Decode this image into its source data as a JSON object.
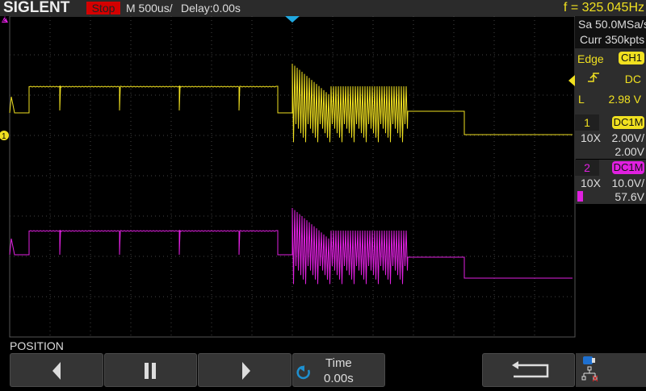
{
  "header": {
    "brand": "SIGLENT",
    "run_state": "Stop",
    "timebase": "M 500us/",
    "delay": "Delay:0.00s",
    "frequency": "f = 325.045Hz"
  },
  "acquisition": {
    "sample_rate": "Sa 50.0MSa/s",
    "memory": "Curr 350kpts"
  },
  "trigger": {
    "type": "Edge",
    "source": "CH1",
    "slope_icon": "rising-edge-icon",
    "coupling": "DC",
    "level_label": "L",
    "level": "2.98 V"
  },
  "channels": [
    {
      "number": "1",
      "coupling": "DC1M",
      "probe": "10X",
      "scale": "2.00V/",
      "offset": "2.00V",
      "color": "#f0e020"
    },
    {
      "number": "2",
      "coupling": "DC1M",
      "probe": "10X",
      "scale": "10.0V/",
      "offset": "57.6V",
      "color": "#e020e0"
    }
  ],
  "bottom": {
    "menu_title": "POSITION",
    "buttons": [
      {
        "icon": "triangle-left-icon"
      },
      {
        "icon": "pause-icon"
      },
      {
        "icon": "triangle-right-icon"
      },
      {
        "icon": "rotate-knob-icon",
        "label": "Time",
        "value": "0.00s"
      },
      {
        "icon": "return-arrow-icon"
      }
    ]
  },
  "status_icons": [
    "usb-icon",
    "network-icon"
  ],
  "markers": {
    "ch1": "1",
    "ch2": "2"
  }
}
